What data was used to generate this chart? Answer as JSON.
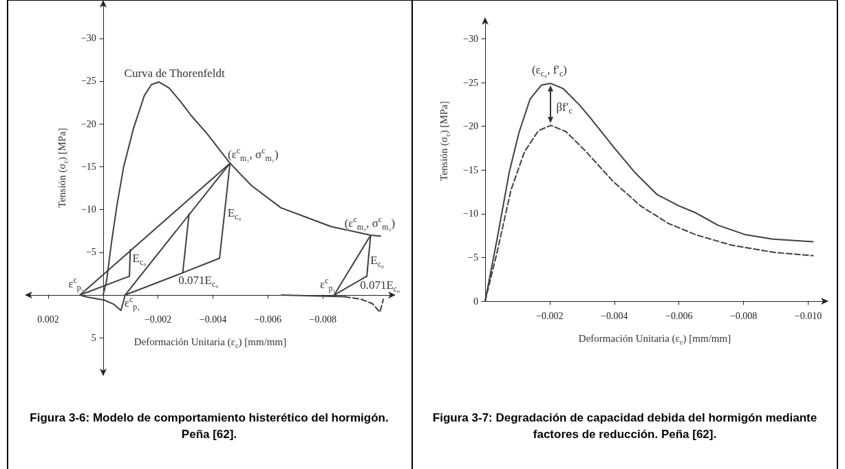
{
  "chart_data": [
    {
      "type": "line",
      "title": "Figura 3-6: Modelo de comportamiento histerético del hormigón. Peña [62].",
      "xlabel": "Deformación Unitaria (ε$_{c}$) [mm/mm]",
      "ylabel": "Tensión (σ$_{c}$) [MPa]",
      "xlim": [
        0.0027,
        -0.0105
      ],
      "ylim": [
        9,
        -34
      ],
      "xticks": [
        {
          "value": 0.002,
          "label": "0.002"
        },
        {
          "value": -0.002,
          "label": "−0.002"
        },
        {
          "value": -0.004,
          "label": "−0.004"
        },
        {
          "value": -0.006,
          "label": "−0.006"
        },
        {
          "value": -0.008,
          "label": "−0.008"
        }
      ],
      "yticks": [
        {
          "value": -30,
          "label": "−30"
        },
        {
          "value": -25,
          "label": "−25"
        },
        {
          "value": -20,
          "label": "−20"
        },
        {
          "value": -15,
          "label": "−15"
        },
        {
          "value": -10,
          "label": "−10"
        },
        {
          "value": -5,
          "label": "−5"
        },
        5
      ],
      "series": [
        {
          "color": "#404040",
          "x": [
            0,
            -0.000125,
            -0.0003,
            -0.0005,
            -0.00075,
            -0.0011,
            -0.0015,
            -0.00176,
            -0.00203,
            -0.0024,
            -0.0028,
            -0.0032,
            -0.0038,
            -0.00462,
            -0.0054,
            -0.00647,
            -0.0073,
            -0.0083,
            -0.00974,
            -0.0101
          ],
          "values": [
            0,
            -1.6,
            -6,
            -10.4,
            -15,
            -19.4,
            -23.3,
            -24.6,
            -24.9,
            -24.2,
            -22.7,
            -21,
            -18.8,
            -15.4,
            -12.8,
            -10.2,
            -9.2,
            -8,
            -7,
            -6.9
          ]
        },
        {
          "color": "#404040",
          "x": [
            -0.00313,
            -0.0029,
            -0.00424,
            -0.00462
          ],
          "values": [
            -9.5,
            -2.6,
            -4.3,
            -15.4
          ]
        },
        {
          "color": "#404040",
          "x": [
            -0.00462,
            -0.0008,
            -0.00073,
            -0.00065,
            -0.0004,
            -5e-05,
            0.00064,
            0.00084,
            -0.00096,
            -0.00099
          ],
          "values": [
            -15.4,
            0,
            0.9,
            1.8,
            1.1,
            0.6,
            0.2,
            0,
            -2.2,
            -5.3
          ]
        },
        {
          "color": "#404040",
          "x": [
            0.00084,
            -0.00462
          ],
          "values": [
            0,
            -15.4
          ]
        },
        {
          "color": "#404040",
          "x": [
            -0.0029,
            -0.0008
          ],
          "values": [
            -2.6,
            0
          ]
        },
        {
          "color": "#404040",
          "x": [
            -0.00841,
            -0.00974,
            -0.0096
          ],
          "values": [
            0,
            -7,
            -2.2
          ]
        },
        {
          "color": "#404040",
          "x": [
            -0.0096,
            -0.00841
          ],
          "values": [
            -2.2,
            0
          ]
        },
        {
          "color": "#404040",
          "x": [
            -0.0065,
            -0.0088
          ],
          "values": [
            0,
            0.2
          ]
        },
        {
          "color": "#404040",
          "line_style": "dashed",
          "x": [
            -0.0088,
            -0.0094,
            -0.0098,
            -0.01008,
            -0.0102
          ],
          "values": [
            0.2,
            0.5,
            1,
            2,
            0.5
          ]
        }
      ],
      "annotations": [
        "Curva de Thorenfeldt",
        "(ε$^{c}$$_{m₁}$, σ$^{c}$$_{m₁}$)",
        "E$_{c₀}$",
        "E$_{c₀}$",
        "0.071E$_{c₀}$",
        "ε$^{c}$$_{p₁}$",
        "ε$^{c}$$_{p₁}$",
        "(ε$^{c}$$_{m₂}$, σ$^{c}$$_{m₂}$)",
        "E$_{c₀}$",
        "ε$^{c}$$_{p₁}$",
        "0.071E$_{c₀}$"
      ]
    },
    {
      "type": "line",
      "title": "Figura 3-7: Degradación de capacidad debida del hormigón mediante factores de reducción. Peña [62].",
      "xlabel": "Deformación Unitaria (ε$_{c}$) [mm/mm]",
      "ylabel": "Tensión (σ$_{c}$) [MPa]",
      "xlim": [
        0,
        -0.0105
      ],
      "ylim": [
        0,
        -32
      ],
      "xticks": [
        {
          "value": -0.002,
          "label": "−0.002"
        },
        {
          "value": -0.004,
          "label": "−0.004"
        },
        {
          "value": -0.006,
          "label": "−0.006"
        },
        {
          "value": -0.008,
          "label": "−0.008"
        },
        {
          "value": -0.01,
          "label": "−0.010"
        }
      ],
      "yticks": [
        0,
        {
          "value": -5,
          "label": "−5"
        },
        {
          "value": -10,
          "label": "−10"
        },
        {
          "value": -15,
          "label": "−15"
        },
        {
          "value": -20,
          "label": "−20"
        },
        {
          "value": -25,
          "label": "−25"
        },
        {
          "value": -30,
          "label": "−30"
        }
      ],
      "series": [
        {
          "color": "#404040",
          "x": [
            0,
            -0.00037,
            -0.00075,
            -0.00105,
            -0.00139,
            -0.00174,
            -0.00203,
            -0.00242,
            -0.00293,
            -0.00327,
            -0.00396,
            -0.00464,
            -0.00532,
            -0.006,
            -0.00652,
            -0.0072,
            -0.00806,
            -0.00891,
            -0.01015
          ],
          "values": [
            0,
            -7.1,
            -14.8,
            -19.3,
            -23.1,
            -24.7,
            -24.9,
            -24.3,
            -22.4,
            -20.9,
            -17.7,
            -14.7,
            -12.2,
            -10.9,
            -10.1,
            -8.7,
            -7.6,
            -7.1,
            -6.8
          ]
        },
        {
          "color": "#404040",
          "line_style": "dashed",
          "x": [
            0,
            -0.00037,
            -0.0008,
            -0.00122,
            -0.00165,
            -0.00203,
            -0.0025,
            -0.0031,
            -0.00396,
            -0.00481,
            -0.00567,
            -0.00652,
            -0.00763,
            -0.00891,
            -0.01015
          ],
          "values": [
            0,
            -5.6,
            -12.7,
            -17.1,
            -19.5,
            -20.1,
            -19.4,
            -17.2,
            -13.7,
            -10.9,
            -8.9,
            -7.6,
            -6.4,
            -5.6,
            -5.2
          ]
        }
      ],
      "annotations": [
        "(ε$_{c₀}$, f′$_{c}$)",
        "βf′$_{c}$"
      ]
    }
  ]
}
